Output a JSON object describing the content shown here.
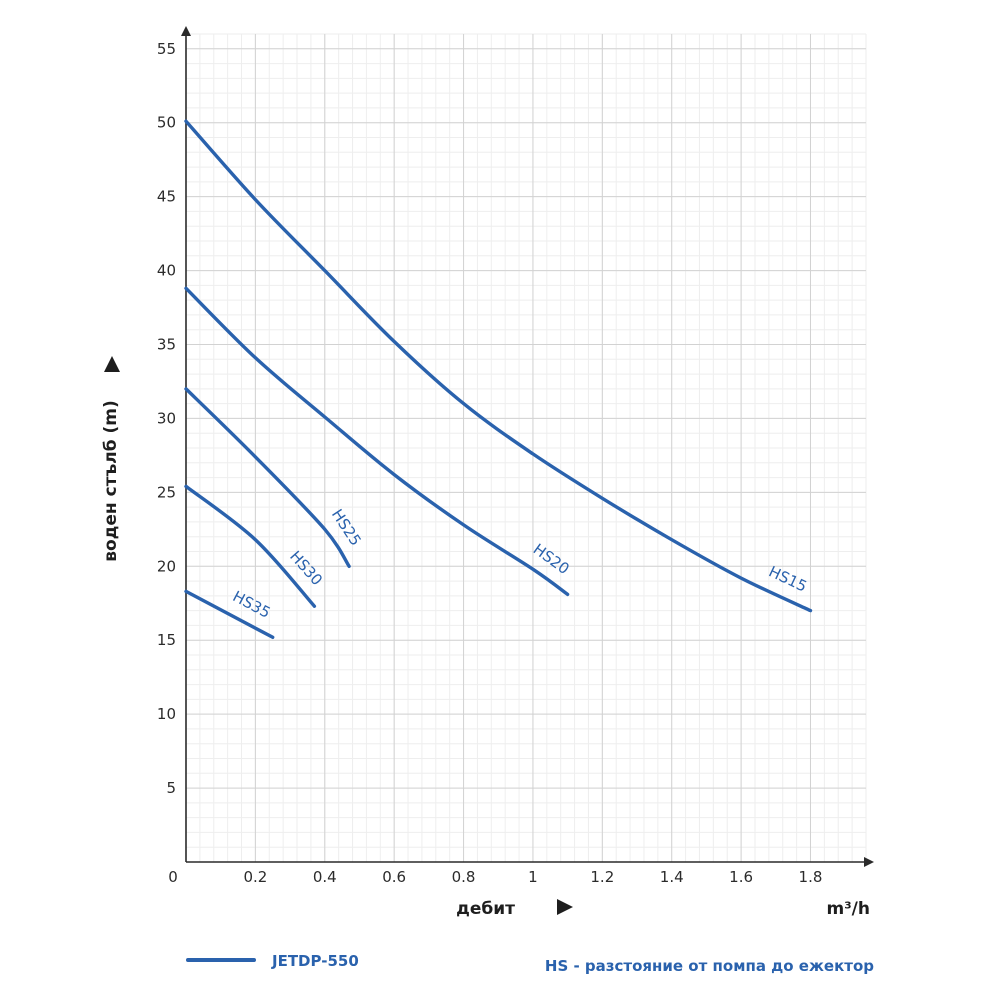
{
  "chart_data": {
    "type": "line",
    "xlabel": "дебит",
    "xunit": "m³/h",
    "ylabel": "воден стълб (m)",
    "xlim": [
      0,
      1.96
    ],
    "ylim": [
      0,
      56
    ],
    "x_ticks": [
      0,
      0.2,
      0.4,
      0.6,
      0.8,
      1,
      1.2,
      1.4,
      1.6,
      1.8
    ],
    "x_tick_labels": [
      "0",
      "0.2",
      "0.4",
      "0.6",
      "0.8",
      "1",
      "1.2",
      "1.4",
      "1.6",
      "1.8"
    ],
    "y_ticks": [
      5,
      10,
      15,
      20,
      25,
      30,
      35,
      40,
      45,
      50,
      55
    ],
    "y_tick_labels": [
      "5",
      "10",
      "15",
      "20",
      "25",
      "30",
      "35",
      "40",
      "45",
      "50",
      "55"
    ],
    "grid": true,
    "minor_grid": true,
    "line_color": "#2a62ad",
    "series": [
      {
        "name": "HS15",
        "points": [
          [
            0,
            50.1
          ],
          [
            0.2,
            44.8
          ],
          [
            0.4,
            40
          ],
          [
            0.6,
            35.2
          ],
          [
            0.8,
            31
          ],
          [
            1,
            27.6
          ],
          [
            1.2,
            24.6
          ],
          [
            1.4,
            21.8
          ],
          [
            1.6,
            19.2
          ],
          [
            1.8,
            17
          ]
        ]
      },
      {
        "name": "HS20",
        "points": [
          [
            0,
            38.8
          ],
          [
            0.2,
            34.1
          ],
          [
            0.4,
            30.1
          ],
          [
            0.6,
            26.2
          ],
          [
            0.8,
            22.8
          ],
          [
            1,
            19.8
          ],
          [
            1.1,
            18.1
          ]
        ]
      },
      {
        "name": "HS25",
        "points": [
          [
            0,
            32
          ],
          [
            0.2,
            27.4
          ],
          [
            0.4,
            22.5
          ],
          [
            0.47,
            20
          ]
        ]
      },
      {
        "name": "HS30",
        "points": [
          [
            0,
            25.4
          ],
          [
            0.2,
            21.8
          ],
          [
            0.37,
            17.3
          ]
        ]
      },
      {
        "name": "HS35",
        "points": [
          [
            0,
            18.3
          ],
          [
            0.25,
            15.2
          ]
        ]
      }
    ],
    "legend": {
      "placement": "bottom-left",
      "entries": [
        "JETDP-550"
      ]
    },
    "annotations": [
      "HS - разстояние от помпа до ежектор"
    ]
  }
}
